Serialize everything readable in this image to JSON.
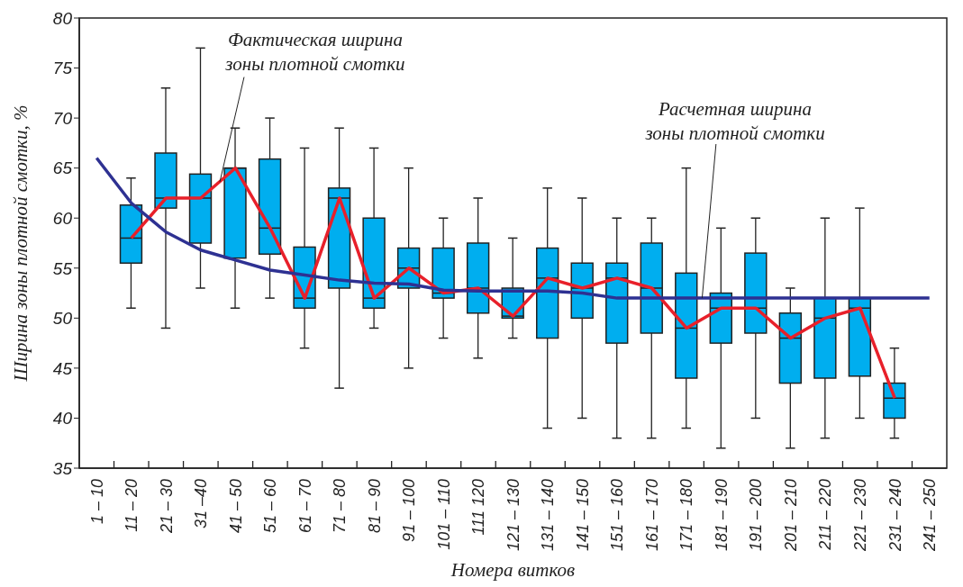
{
  "chart_data": {
    "type": "box",
    "xlabel": "Номера витков",
    "ylabel": "Ширина зоны плотной смотки, %",
    "categories": [
      "1 – 10",
      "11 – 20",
      "21 – 30",
      "31 –40",
      "41 – 50",
      "51 – 60",
      "61 – 70",
      "71 – 80",
      "81 – 90",
      "91 – 100",
      "101 – 110",
      "111 120",
      "121 – 130",
      "131 – 140",
      "141 – 150",
      "151 – 160",
      "161 – 170",
      "171 – 180",
      "181 – 190",
      "191 – 200",
      "201 – 210",
      "211 – 220",
      "221 – 230",
      "231 – 240",
      "241 – 250"
    ],
    "boxes": [
      null,
      {
        "low": 51,
        "q1": 55.5,
        "median": 58,
        "q3": 61.3,
        "high": 64
      },
      {
        "low": 49,
        "q1": 61,
        "median": 62,
        "q3": 66.5,
        "high": 73
      },
      {
        "low": 53,
        "q1": 57.5,
        "median": 62,
        "q3": 64.4,
        "high": 77
      },
      {
        "low": 51,
        "q1": 56,
        "median": 65,
        "q3": 65,
        "high": 69
      },
      {
        "low": 52,
        "q1": 56.4,
        "median": 59,
        "q3": 65.9,
        "high": 70
      },
      {
        "low": 47,
        "q1": 51,
        "median": 52,
        "q3": 57.1,
        "high": 67
      },
      {
        "low": 43,
        "q1": 53,
        "median": 62,
        "q3": 63,
        "high": 69
      },
      {
        "low": 49,
        "q1": 51,
        "median": 52,
        "q3": 60,
        "high": 67
      },
      {
        "low": 45,
        "q1": 53,
        "median": 55,
        "q3": 57,
        "high": 65
      },
      {
        "low": 48,
        "q1": 52,
        "median": 52.5,
        "q3": 57,
        "high": 60
      },
      {
        "low": 46,
        "q1": 50.5,
        "median": 53,
        "q3": 57.5,
        "high": 62
      },
      {
        "low": 48,
        "q1": 50,
        "median": 50.2,
        "q3": 53,
        "high": 58
      },
      {
        "low": 39,
        "q1": 48,
        "median": 54,
        "q3": 57,
        "high": 63
      },
      {
        "low": 40,
        "q1": 50,
        "median": 53,
        "q3": 55.5,
        "high": 62
      },
      {
        "low": 38,
        "q1": 47.5,
        "median": 54,
        "q3": 55.5,
        "high": 60
      },
      {
        "low": 38,
        "q1": 48.5,
        "median": 53,
        "q3": 57.5,
        "high": 60
      },
      {
        "low": 39,
        "q1": 44,
        "median": 49,
        "q3": 54.5,
        "high": 65
      },
      {
        "low": 37,
        "q1": 47.5,
        "median": 51,
        "q3": 52.5,
        "high": 59
      },
      {
        "low": 40,
        "q1": 48.5,
        "median": 51,
        "q3": 56.5,
        "high": 60
      },
      {
        "low": 37,
        "q1": 43.5,
        "median": 48,
        "q3": 50.5,
        "high": 53
      },
      {
        "low": 38,
        "q1": 44,
        "median": 50,
        "q3": 52,
        "high": 60
      },
      {
        "low": 40,
        "q1": 44.2,
        "median": 51,
        "q3": 52,
        "high": 61
      },
      {
        "low": 38,
        "q1": 40,
        "median": 42,
        "q3": 43.5,
        "high": 47
      },
      null
    ],
    "color": "#00aeef",
    "series": [
      {
        "name": "Фактическая ширина\nзоны плотной смотки",
        "type": "line",
        "color": "#e8202a",
        "values": [
          null,
          58,
          62,
          62,
          65,
          59,
          52,
          62,
          52,
          55,
          52.5,
          53,
          50.2,
          54,
          53,
          54,
          53,
          49,
          51,
          51,
          48,
          50,
          51,
          42,
          null
        ]
      },
      {
        "name": "Расчетная ширина\nзоны плотной смотки",
        "type": "line",
        "color": "#2e3192",
        "values": [
          66,
          61.5,
          58.6,
          56.8,
          55.8,
          54.8,
          54.3,
          53.8,
          53.5,
          53.4,
          52.8,
          52.7,
          52.7,
          52.7,
          52.5,
          52,
          52,
          52,
          52,
          52,
          52,
          52,
          52,
          52,
          52
        ]
      }
    ],
    "marker": "none",
    "ylim": [
      35,
      80
    ],
    "yticks": [
      35,
      40,
      45,
      50,
      55,
      60,
      65,
      70,
      75,
      80
    ]
  }
}
